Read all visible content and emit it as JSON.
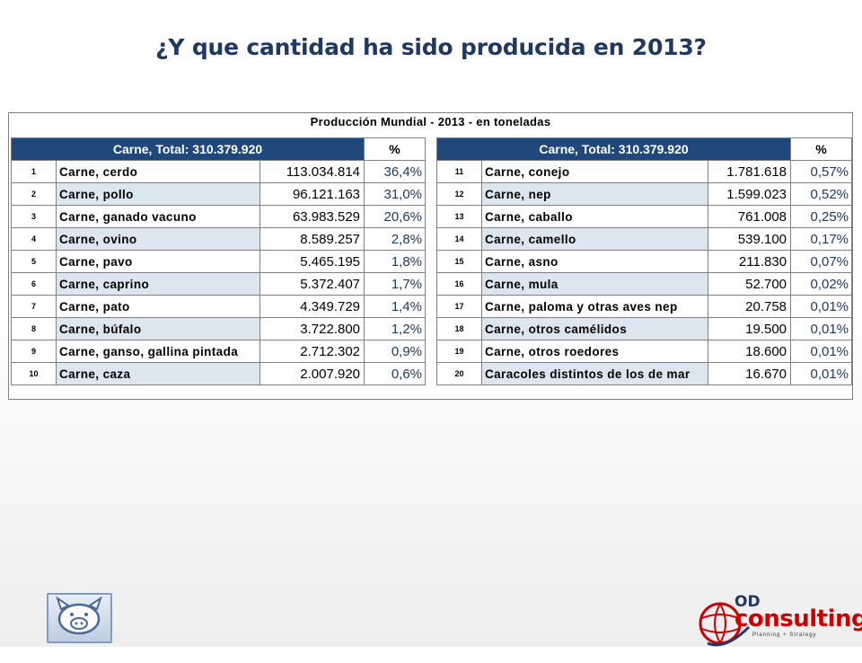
{
  "title": "¿Y que cantidad ha sido producida en 2013?",
  "table": {
    "caption": "Producción Mundial - 2013 - en toneladas",
    "left": {
      "header": "Carne, Total: 310.379.920",
      "pct_header": "%",
      "rows": [
        {
          "n": "1",
          "name": "Carne, cerdo",
          "value": "113.034.814",
          "pct": "36,4%"
        },
        {
          "n": "2",
          "name": "Carne, pollo",
          "value": "96.121.163",
          "pct": "31,0%"
        },
        {
          "n": "3",
          "name": "Carne, ganado vacuno",
          "value": "63.983.529",
          "pct": "20,6%"
        },
        {
          "n": "4",
          "name": "Carne, ovino",
          "value": "8.589.257",
          "pct": "2,8%"
        },
        {
          "n": "5",
          "name": "Carne, pavo",
          "value": "5.465.195",
          "pct": "1,8%"
        },
        {
          "n": "6",
          "name": "Carne, caprino",
          "value": "5.372.407",
          "pct": "1,7%"
        },
        {
          "n": "7",
          "name": "Carne, pato",
          "value": "4.349.729",
          "pct": "1,4%"
        },
        {
          "n": "8",
          "name": "Carne, búfalo",
          "value": "3.722.800",
          "pct": "1,2%"
        },
        {
          "n": "9",
          "name": "Carne, ganso, gallina pintada",
          "value": "2.712.302",
          "pct": "0,9%"
        },
        {
          "n": "10",
          "name": "Carne, caza",
          "value": "2.007.920",
          "pct": "0,6%"
        }
      ]
    },
    "right": {
      "header": "Carne, Total: 310.379.920",
      "pct_header": "%",
      "rows": [
        {
          "n": "11",
          "name": "Carne, conejo",
          "value": "1.781.618",
          "pct": "0,57%"
        },
        {
          "n": "12",
          "name": "Carne, nep",
          "value": "1.599.023",
          "pct": "0,52%"
        },
        {
          "n": "13",
          "name": "Carne, caballo",
          "value": "761.008",
          "pct": "0,25%"
        },
        {
          "n": "14",
          "name": "Carne, camello",
          "value": "539.100",
          "pct": "0,17%"
        },
        {
          "n": "15",
          "name": "Carne, asno",
          "value": "211.830",
          "pct": "0,07%"
        },
        {
          "n": "16",
          "name": "Carne, mula",
          "value": "52.700",
          "pct": "0,02%"
        },
        {
          "n": "17",
          "name": "Carne, paloma y otras aves nep",
          "value": "20.758",
          "pct": "0,01%"
        },
        {
          "n": "18",
          "name": "Carne, otros camélidos",
          "value": "19.500",
          "pct": "0,01%"
        },
        {
          "n": "19",
          "name": "Carne, otros roedores",
          "value": "18.600",
          "pct": "0,01%"
        },
        {
          "n": "20",
          "name": "Caracoles distintos de los de mar",
          "value": "16.670",
          "pct": "0,01%"
        }
      ]
    }
  },
  "logos": {
    "left_icon": "pig-icon",
    "right_brand_top": "OD",
    "right_brand_main": "consulting",
    "right_tagline": "Planning + Strategy",
    "right_icon": "globe-icon",
    "brand_color": "#cc0000"
  }
}
